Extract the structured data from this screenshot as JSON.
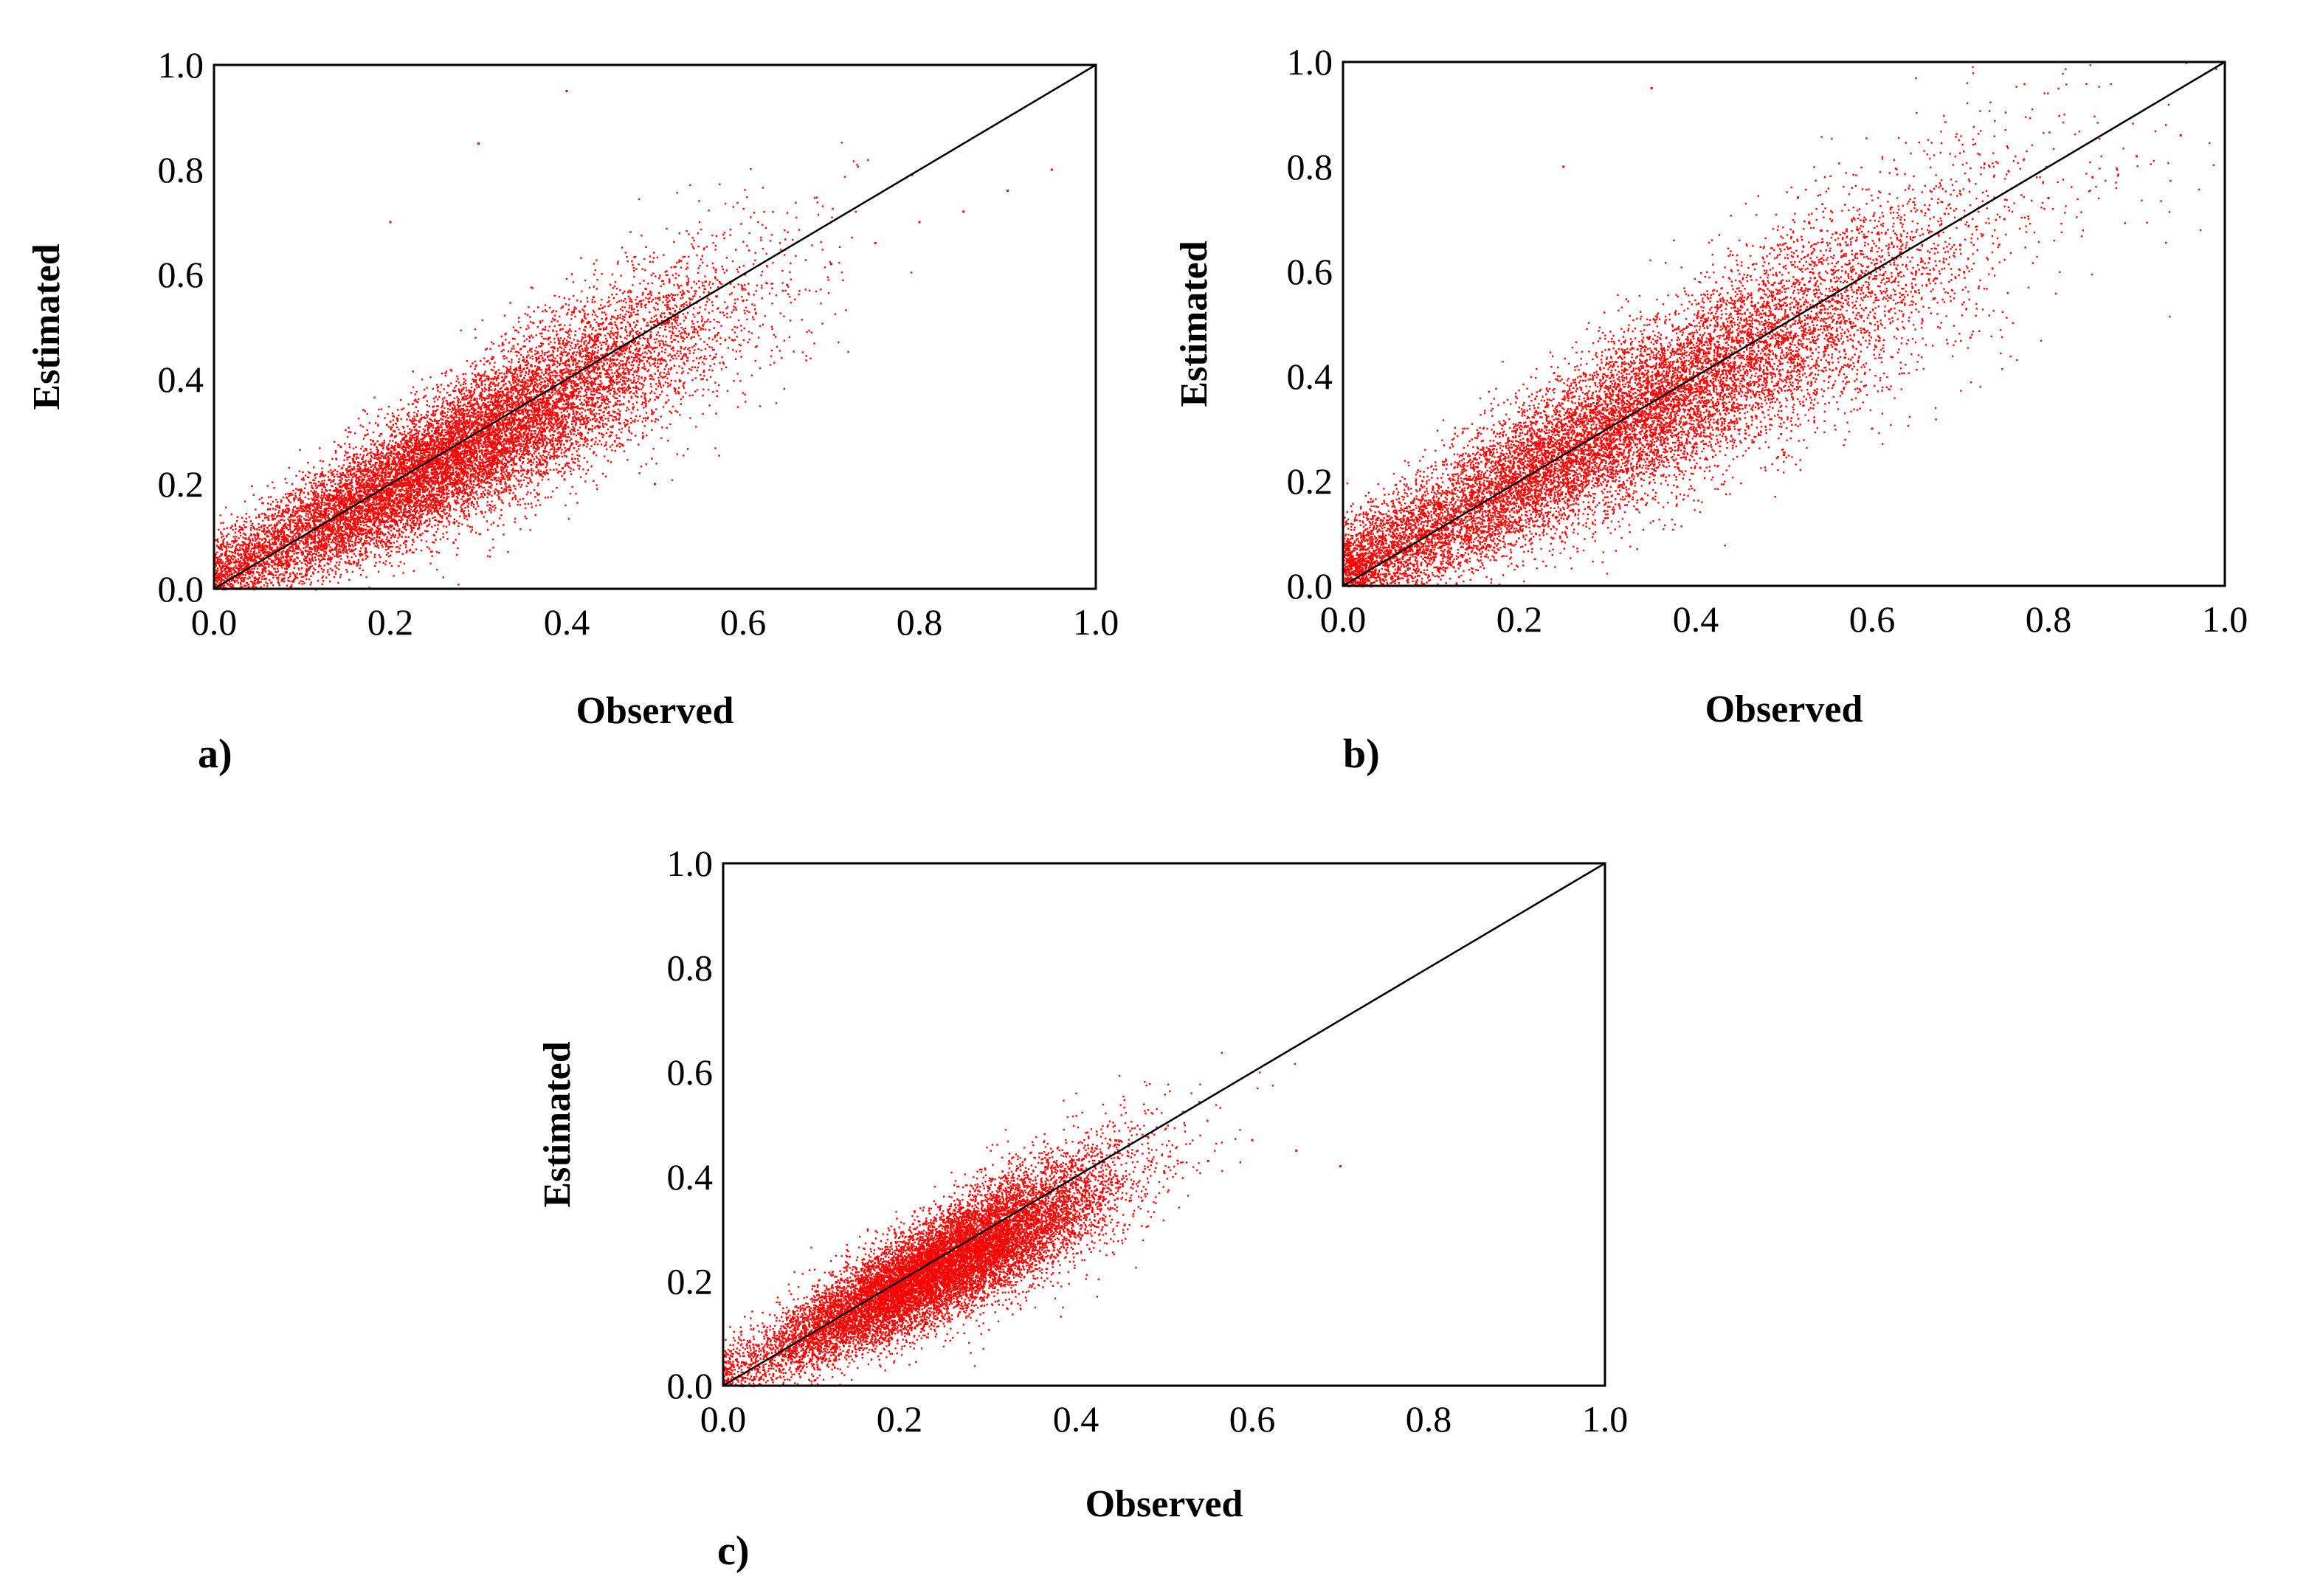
{
  "figure": {
    "point_color": "#ff0000",
    "line_color": "#000000",
    "background": "#ffffff"
  },
  "chart_data": [
    {
      "id": "a",
      "type": "scatter",
      "panel_label": "a)",
      "xlabel": "Observed",
      "ylabel": "Estimated",
      "xlim": [
        0,
        1
      ],
      "ylim": [
        0,
        1
      ],
      "xticks": [
        "0.0",
        "0.2",
        "0.4",
        "0.6",
        "0.8",
        "1.0"
      ],
      "yticks": [
        "0.0",
        "0.2",
        "0.4",
        "0.6",
        "0.8",
        "1.0"
      ],
      "reference_line": {
        "label": "1:1 line",
        "from": [
          0,
          0
        ],
        "to": [
          1,
          1
        ]
      },
      "series": [
        {
          "name": "points",
          "cluster": {
            "x_mean": 0.27,
            "x_sd": 0.15,
            "slope": 0.88,
            "intercept": 0.02,
            "noise_sd": 0.07
          },
          "x": [
            0.05,
            0.08,
            0.1,
            0.12,
            0.15,
            0.18,
            0.2,
            0.22,
            0.25,
            0.28,
            0.3,
            0.33,
            0.35,
            0.38,
            0.4,
            0.45,
            0.5,
            0.55,
            0.6,
            0.65,
            0.7,
            0.75,
            0.8,
            0.85,
            0.9,
            0.95,
            0.2,
            0.3,
            0.4,
            0.5
          ],
          "y": [
            0.06,
            0.1,
            0.12,
            0.13,
            0.16,
            0.18,
            0.2,
            0.21,
            0.23,
            0.26,
            0.28,
            0.3,
            0.32,
            0.34,
            0.36,
            0.4,
            0.46,
            0.5,
            0.55,
            0.58,
            0.62,
            0.66,
            0.7,
            0.72,
            0.76,
            0.8,
            0.7,
            0.85,
            0.95,
            0.2
          ]
        }
      ]
    },
    {
      "id": "b",
      "type": "scatter",
      "panel_label": "b)",
      "xlabel": "Observed",
      "ylabel": "Estimated",
      "xlim": [
        0,
        1
      ],
      "ylim": [
        0,
        1
      ],
      "xticks": [
        "0.0",
        "0.2",
        "0.4",
        "0.6",
        "0.8",
        "1.0"
      ],
      "yticks": [
        "0.0",
        "0.2",
        "0.4",
        "0.6",
        "0.8",
        "1.0"
      ],
      "reference_line": {
        "label": "1:1 line",
        "from": [
          0,
          0
        ],
        "to": [
          1,
          1
        ]
      },
      "series": [
        {
          "name": "points",
          "cluster": {
            "x_mean": 0.3,
            "x_sd": 0.2,
            "slope": 0.92,
            "intercept": 0.02,
            "noise_sd": 0.08
          },
          "x": [
            0.02,
            0.05,
            0.08,
            0.1,
            0.15,
            0.2,
            0.25,
            0.3,
            0.35,
            0.4,
            0.45,
            0.5,
            0.55,
            0.6,
            0.65,
            0.7,
            0.75,
            0.8,
            0.85,
            0.9,
            0.95,
            1.0,
            0.25,
            0.35,
            0.5,
            0.6
          ],
          "y": [
            0.03,
            0.06,
            0.08,
            0.1,
            0.14,
            0.18,
            0.23,
            0.28,
            0.32,
            0.37,
            0.42,
            0.47,
            0.52,
            0.56,
            0.6,
            0.65,
            0.7,
            0.74,
            0.78,
            0.82,
            0.86,
            0.9,
            0.8,
            0.95,
            0.25,
            0.3
          ]
        }
      ]
    },
    {
      "id": "c",
      "type": "scatter",
      "panel_label": "c)",
      "xlabel": "Observed",
      "ylabel": "Estimated",
      "xlim": [
        0,
        1
      ],
      "ylim": [
        0,
        1
      ],
      "xticks": [
        "0.0",
        "0.2",
        "0.4",
        "0.6",
        "0.8",
        "1.0"
      ],
      "yticks": [
        "0.0",
        "0.2",
        "0.4",
        "0.6",
        "0.8",
        "1.0"
      ],
      "reference_line": {
        "label": "1:1 line",
        "from": [
          0,
          0
        ],
        "to": [
          1,
          1
        ]
      },
      "series": [
        {
          "name": "points",
          "cluster": {
            "x_mean": 0.24,
            "x_sd": 0.1,
            "slope": 0.85,
            "intercept": 0.02,
            "noise_sd": 0.055
          },
          "x": [
            0.03,
            0.05,
            0.08,
            0.1,
            0.12,
            0.15,
            0.18,
            0.2,
            0.22,
            0.25,
            0.28,
            0.3,
            0.32,
            0.35,
            0.38,
            0.4,
            0.42,
            0.45,
            0.5,
            0.55,
            0.6,
            0.65,
            0.7
          ],
          "y": [
            0.04,
            0.06,
            0.08,
            0.1,
            0.12,
            0.14,
            0.17,
            0.19,
            0.2,
            0.22,
            0.25,
            0.27,
            0.29,
            0.31,
            0.33,
            0.35,
            0.36,
            0.38,
            0.41,
            0.43,
            0.47,
            0.45,
            0.42
          ]
        }
      ]
    }
  ]
}
